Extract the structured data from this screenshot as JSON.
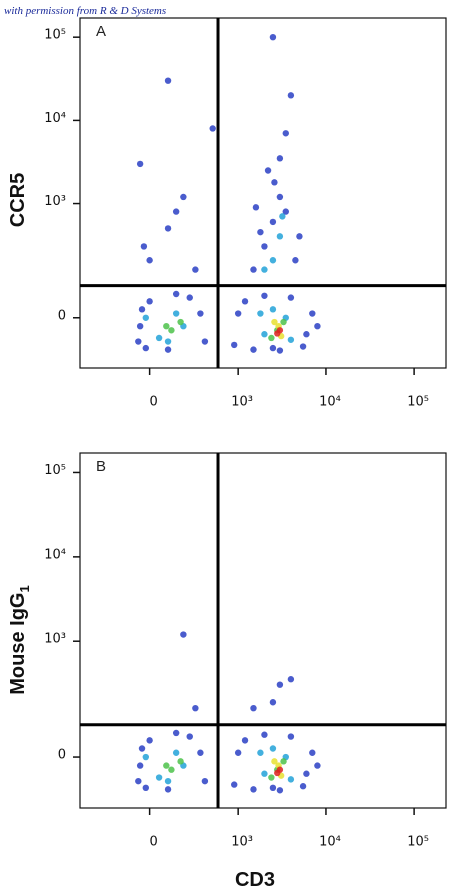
{
  "watermark": "with permission from R & D Systems",
  "chart_data": [
    {
      "type": "scatter",
      "panel_label": "A",
      "y_label": "CCR5",
      "x_scale": "biexponential",
      "y_scale": "biexponential",
      "xlim": [
        -600,
        230000
      ],
      "ylim": [
        -160,
        170000
      ],
      "xticks": [
        0,
        {
          "value": 1000,
          "label": "10³"
        },
        {
          "value": 10000,
          "label": "10⁴"
        },
        {
          "value": 100000,
          "label": "10⁵"
        }
      ],
      "yticks": [
        0,
        {
          "value": 1000,
          "label": "10³"
        },
        {
          "value": 10000,
          "label": "10⁴"
        },
        {
          "value": 100000,
          "label": "10⁵"
        }
      ],
      "gates": {
        "x": 580,
        "y": 86
      },
      "series": [
        {
          "color": "#2a3fc4",
          "x": [
            -60,
            -40,
            -20,
            0,
            100,
            250,
            400,
            350,
            -50,
            150,
            900,
            1200,
            1500,
            2000,
            2500,
            4000,
            5500,
            7000,
            6000,
            1000,
            3000,
            8000,
            1500,
            2000,
            2500,
            3000,
            2200,
            3500,
            1800,
            4500,
            3000,
            2600,
            5000,
            1600,
            0,
            100,
            200,
            -30,
            300,
            150,
            2500,
            4000,
            3500,
            100,
            -50,
            500
          ],
          "y": [
            -60,
            20,
            -80,
            40,
            -85,
            50,
            -60,
            10,
            -20,
            60,
            -70,
            40,
            -85,
            55,
            -80,
            50,
            -75,
            10,
            -40,
            10,
            -88,
            -20,
            150,
            300,
            600,
            1200,
            2500,
            800,
            450,
            200,
            3500,
            1800,
            400,
            900,
            200,
            500,
            1200,
            300,
            150,
            800,
            100000,
            20000,
            7000,
            30000,
            3000,
            8000
          ]
        },
        {
          "color": "#22a2d8",
          "x": [
            50,
            200,
            150,
            -20,
            100,
            2000,
            2500,
            4000,
            3500,
            1800,
            2500,
            3000,
            2000,
            3200
          ],
          "y": [
            -50,
            -20,
            10,
            0,
            -60,
            -40,
            20,
            -55,
            0,
            10,
            200,
            400,
            150,
            700
          ]
        },
        {
          "color": "#4cc24a",
          "x": [
            120,
            180,
            90,
            2800,
            3300,
            2400
          ],
          "y": [
            -30,
            -10,
            -20,
            -30,
            -10,
            -50
          ]
        },
        {
          "color": "#e8e030",
          "x": [
            2900,
            3100,
            2600
          ],
          "y": [
            -20,
            -45,
            -10
          ]
        },
        {
          "color": "#e02020",
          "x": [
            3000,
            2800
          ],
          "y": [
            -30,
            -38
          ]
        }
      ]
    },
    {
      "type": "scatter",
      "panel_label": "B",
      "y_label": "Mouse IgG",
      "y_label_subscript": "1",
      "x_label": "CD3",
      "x_scale": "biexponential",
      "y_scale": "biexponential",
      "xlim": [
        -600,
        230000
      ],
      "ylim": [
        -160,
        170000
      ],
      "xticks": [
        0,
        {
          "value": 1000,
          "label": "10³"
        },
        {
          "value": 10000,
          "label": "10⁴"
        },
        {
          "value": 100000,
          "label": "10⁵"
        }
      ],
      "yticks": [
        0,
        {
          "value": 1000,
          "label": "10³"
        },
        {
          "value": 10000,
          "label": "10⁴"
        },
        {
          "value": 100000,
          "label": "10⁵"
        }
      ],
      "gates": {
        "x": 580,
        "y": 85
      },
      "series": [
        {
          "color": "#2a3fc4",
          "x": [
            -60,
            -40,
            -20,
            0,
            100,
            250,
            400,
            350,
            -50,
            150,
            900,
            1200,
            1500,
            2000,
            2500,
            4000,
            5500,
            7000,
            6000,
            1000,
            3000,
            8000,
            1500,
            3000,
            4000,
            2500,
            200,
            300
          ],
          "y": [
            -60,
            20,
            -80,
            40,
            -85,
            50,
            -60,
            10,
            -20,
            60,
            -70,
            40,
            -85,
            55,
            -80,
            50,
            -75,
            10,
            -40,
            10,
            -88,
            -20,
            150,
            300,
            350,
            180,
            1200,
            150
          ]
        },
        {
          "color": "#22a2d8",
          "x": [
            50,
            200,
            150,
            -20,
            100,
            2000,
            2500,
            4000,
            3500,
            1800
          ],
          "y": [
            -50,
            -20,
            10,
            0,
            -60,
            -40,
            20,
            -55,
            0,
            10
          ]
        },
        {
          "color": "#4cc24a",
          "x": [
            120,
            180,
            90,
            2800,
            3300,
            2400
          ],
          "y": [
            -30,
            -10,
            -20,
            -30,
            -10,
            -50
          ]
        },
        {
          "color": "#e8e030",
          "x": [
            2900,
            3100,
            2600
          ],
          "y": [
            -20,
            -45,
            -10
          ]
        },
        {
          "color": "#e02020",
          "x": [
            3000,
            2800
          ],
          "y": [
            -30,
            -38
          ]
        }
      ]
    }
  ]
}
